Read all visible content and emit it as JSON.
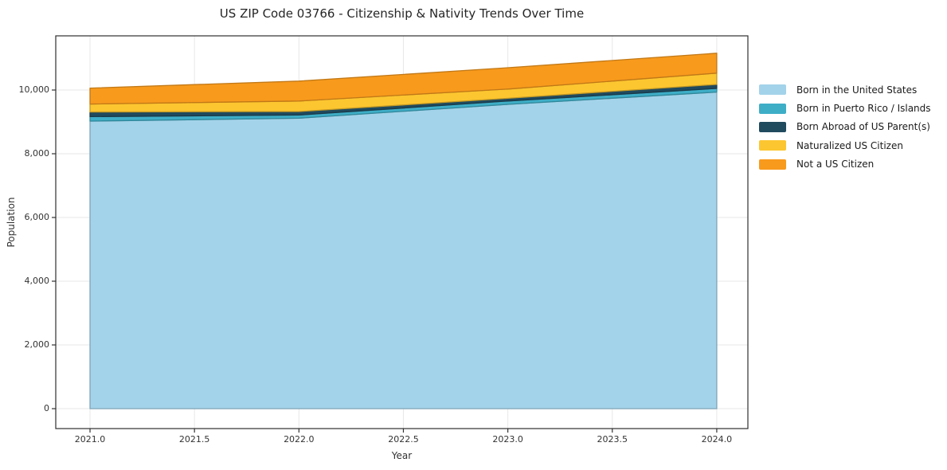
{
  "chart_data": {
    "type": "area",
    "stacked": true,
    "title": "US ZIP Code 03766 - Citizenship & Nativity Trends Over Time",
    "xlabel": "Year",
    "ylabel": "Population",
    "x": [
      2021,
      2022,
      2023,
      2024
    ],
    "series": [
      {
        "name": "Born in the United States",
        "color": "#a3d3ea",
        "values": [
          9025,
          9115,
          9550,
          9935
        ]
      },
      {
        "name": "Born in Puerto Rico / Islands",
        "color": "#3eaec7",
        "values": [
          140,
          100,
          105,
          115
        ]
      },
      {
        "name": "Born Abroad of US Parent(s)",
        "color": "#204a5e",
        "values": [
          145,
          110,
          85,
          125
        ]
      },
      {
        "name": "Naturalized US Citizen",
        "color": "#fcc630",
        "values": [
          250,
          330,
          290,
          355
        ]
      },
      {
        "name": "Not a US Citizen",
        "color": "#f89a1c",
        "values": [
          500,
          625,
          670,
          625
        ]
      }
    ],
    "xlim": [
      2020.836,
      2024.149
    ],
    "ylim": [
      -625,
      11700
    ],
    "xtick_values": [
      2021.0,
      2021.5,
      2022.0,
      2022.5,
      2023.0,
      2023.5,
      2024.0
    ],
    "xtick_labels": [
      "2021.0",
      "2021.5",
      "2022.0",
      "2022.5",
      "2023.0",
      "2023.5",
      "2024.0"
    ],
    "ytick_values": [
      0,
      2000,
      4000,
      6000,
      8000,
      10000
    ],
    "ytick_labels": [
      "0",
      "2,000",
      "4,000",
      "6,000",
      "8,000",
      "10,000"
    ],
    "grid": true,
    "legend_position": "right-outside"
  }
}
